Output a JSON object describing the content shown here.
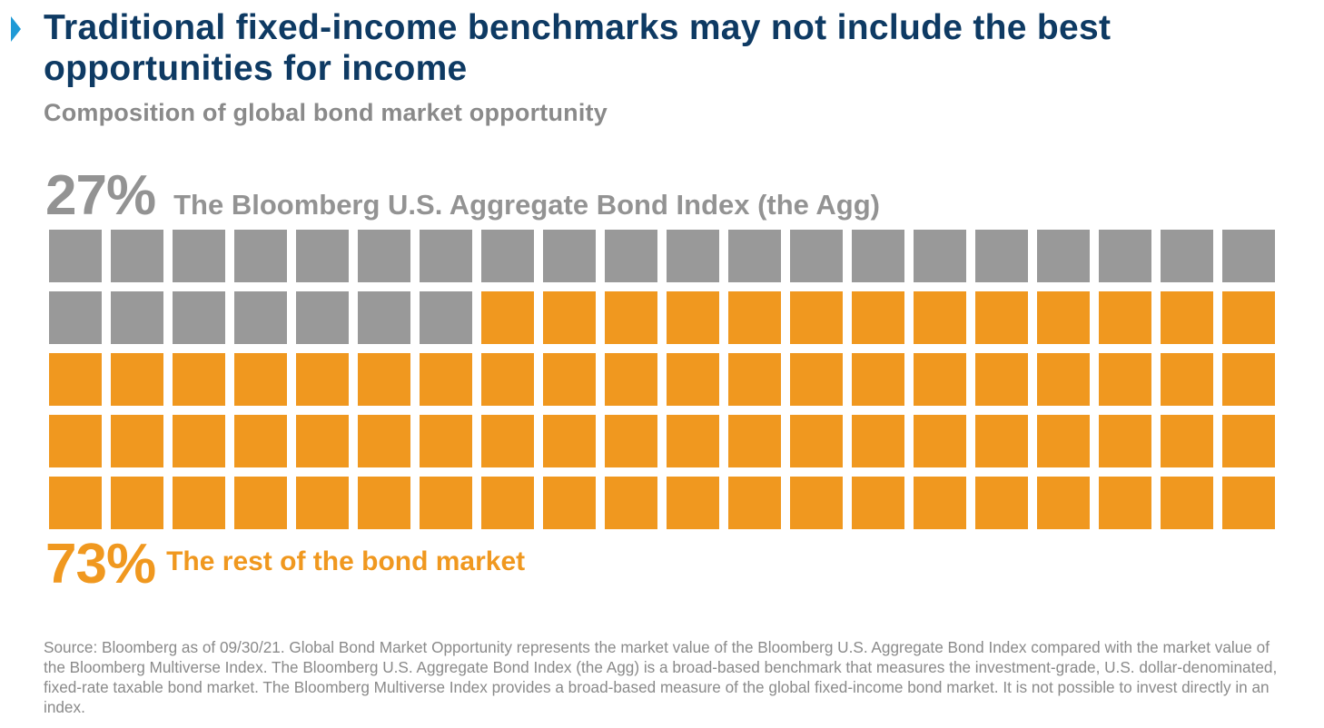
{
  "header": {
    "title": "Traditional fixed-income benchmarks may not include the best opportunities for income",
    "subtitle": "Composition of global bond market opportunity"
  },
  "chart_data": {
    "type": "waffle",
    "rows": 5,
    "columns": 20,
    "total_cells": 100,
    "categories": [
      {
        "value_label": "27%",
        "value": 27,
        "label": "The Bloomberg U.S. Aggregate Bond Index (the Agg)",
        "color": "#999999"
      },
      {
        "value_label": "73%",
        "value": 73,
        "label": "The rest of the bond market",
        "color": "#f0981f"
      }
    ]
  },
  "footer": {
    "source": "Source: Bloomberg as of 09/30/21. Global Bond Market Opportunity represents the market value of the Bloomberg U.S. Aggregate Bond Index compared with the market value of the Bloomberg Multiverse Index. The Bloomberg U.S. Aggregate Bond Index (the Agg) is a broad-based benchmark that measures the investment-grade, U.S. dollar-denominated, fixed-rate taxable bond market. The Bloomberg Multiverse Index provides a broad-based measure of the global fixed-income bond market. It is not possible to invest directly in an index."
  }
}
